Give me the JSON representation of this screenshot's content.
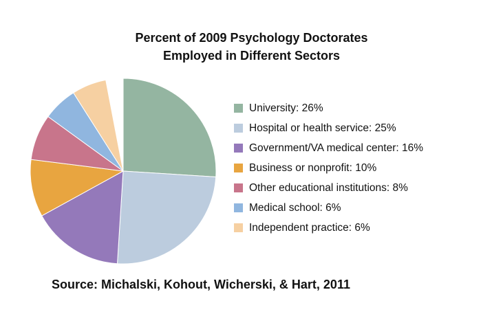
{
  "title": {
    "line1": "Percent of 2009 Psychology Doctorates",
    "line2": "Employed in Different Sectors"
  },
  "source": "Source: Michalski, Kohout, Wicherski, & Hart, 2011",
  "chart_data": {
    "type": "pie",
    "title": "Percent of 2009 Psychology Doctorates Employed in Different Sectors",
    "start_angle_deg": -90,
    "direction": "clockwise",
    "legend_position": "right",
    "legend_format": "{label}: {value}%",
    "slices": [
      {
        "label": "University",
        "value": 26,
        "color": "#94B5A1"
      },
      {
        "label": "Hospital or health service",
        "value": 25,
        "color": "#BCCCDE"
      },
      {
        "label": "Government/VA medical center",
        "value": 16,
        "color": "#9479BA"
      },
      {
        "label": "Business or nonprofit",
        "value": 10,
        "color": "#E8A540"
      },
      {
        "label": "Other educational institutions",
        "value": 8,
        "color": "#C8758B"
      },
      {
        "label": "Medical school",
        "value": 6,
        "color": "#90B6DF"
      },
      {
        "label": "Independent practice",
        "value": 6,
        "color": "#F6D0A2"
      }
    ]
  }
}
